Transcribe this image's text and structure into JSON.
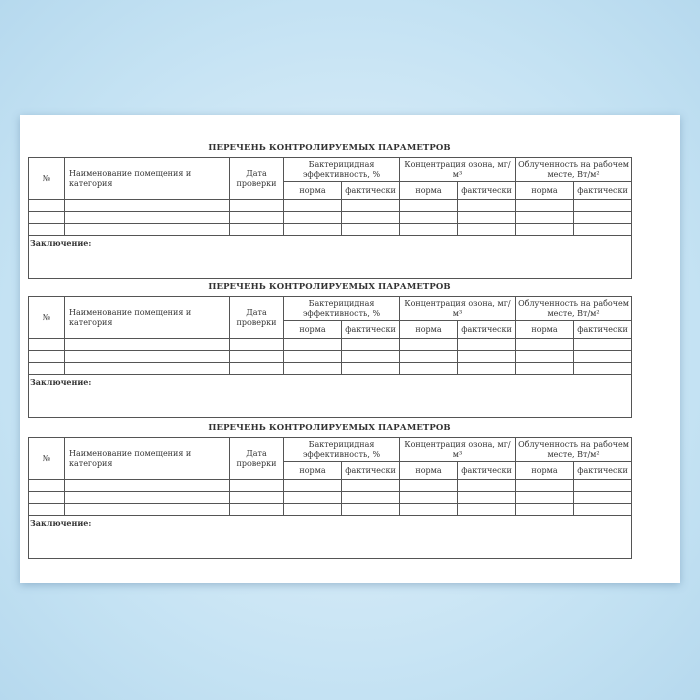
{
  "forms": [
    {
      "title": "ПЕРЕЧЕНЬ КОНТРОЛИРУЕМЫХ ПАРАМЕТРОВ"
    },
    {
      "title": "ПЕРЕЧЕНЬ КОНТРОЛИРУЕМЫХ ПАРАМЕТРОВ"
    },
    {
      "title": "ПЕРЕЧЕНЬ КОНТРОЛИРУЕМЫХ ПАРАМЕТРОВ"
    }
  ],
  "headers": {
    "number": "№",
    "room": "Наименование помещения и категория",
    "date": "Дата проверки",
    "bacterial": "Бактерицидная эффективность, %",
    "ozone": "Концентрация озона, мг/м³",
    "irradiance": "Облученность на рабочем месте, Вт/м²",
    "norm": "норма",
    "actual": "фактически"
  },
  "conclusion_label": "Заключение:"
}
